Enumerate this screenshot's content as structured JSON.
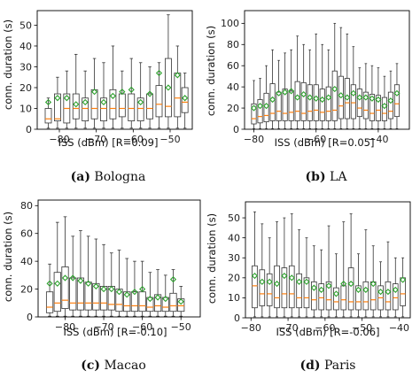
{
  "chart_data": [
    {
      "type": "box",
      "caption_tag": "(a)",
      "caption_text": "Bologna",
      "xlabel": "ISS (dBm) [R=0.09]",
      "ylabel": "conn. duration (s)",
      "xlim": [
        -86,
        -44
      ],
      "ylim": [
        0,
        57
      ],
      "xticks": [
        -80,
        -70,
        -60,
        -50
      ],
      "yticks": [
        0,
        10,
        20,
        30,
        40,
        50
      ],
      "boxes": [
        {
          "x": -83,
          "low": 0.5,
          "q1": 3,
          "median": 5,
          "q3": 10,
          "high": 15,
          "mean": 13
        },
        {
          "x": -80.5,
          "low": 0.5,
          "q1": 4,
          "median": 5,
          "q3": 17,
          "high": 25,
          "mean": 15
        },
        {
          "x": -78,
          "low": 0.5,
          "q1": 3,
          "median": 10,
          "q3": 17,
          "high": 28,
          "mean": 15
        },
        {
          "x": -75.5,
          "low": 0.5,
          "q1": 5,
          "median": 10,
          "q3": 17,
          "high": 36,
          "mean": 12
        },
        {
          "x": -73,
          "low": 0.5,
          "q1": 4,
          "median": 10,
          "q3": 15,
          "high": 28,
          "mean": 13
        },
        {
          "x": -70.5,
          "low": 0.5,
          "q1": 5,
          "median": 10,
          "q3": 19,
          "high": 34,
          "mean": 18
        },
        {
          "x": -68,
          "low": 0.5,
          "q1": 4,
          "median": 10,
          "q3": 15,
          "high": 32,
          "mean": 13
        },
        {
          "x": -65.5,
          "low": 0.5,
          "q1": 5,
          "median": 10,
          "q3": 19,
          "high": 40,
          "mean": 16
        },
        {
          "x": -63,
          "low": 0.5,
          "q1": 6,
          "median": 10,
          "q3": 17,
          "high": 28,
          "mean": 18
        },
        {
          "x": -60.5,
          "low": 0.5,
          "q1": 4,
          "median": 10,
          "q3": 17,
          "high": 34,
          "mean": 19
        },
        {
          "x": -58,
          "low": 0.5,
          "q1": 4,
          "median": 10,
          "q3": 15,
          "high": 32,
          "mean": 13
        },
        {
          "x": -55.5,
          "low": 0.5,
          "q1": 5,
          "median": 10,
          "q3": 17,
          "high": 30,
          "mean": 17
        },
        {
          "x": -53,
          "low": 0.5,
          "q1": 6,
          "median": 12,
          "q3": 21,
          "high": 32,
          "mean": 27
        },
        {
          "x": -50.5,
          "low": 0.5,
          "q1": 6,
          "median": 11,
          "q3": 34,
          "high": 55,
          "mean": 20
        },
        {
          "x": -48,
          "low": 0.5,
          "q1": 6,
          "median": 15,
          "q3": 27,
          "high": 40,
          "mean": 26
        },
        {
          "x": -46,
          "low": 0.5,
          "q1": 8,
          "median": 13,
          "q3": 20,
          "high": 27,
          "mean": 15
        }
      ]
    },
    {
      "type": "box",
      "caption_tag": "(b)",
      "caption_text": "LA",
      "xlabel": "ISS (dBm) [R=0.05]",
      "ylabel": "conn. duration (s)",
      "xlim": [
        -83,
        -30
      ],
      "ylim": [
        0,
        112
      ],
      "xticks": [
        -80,
        -60,
        -40
      ],
      "yticks": [
        0,
        20,
        40,
        60,
        80,
        100
      ],
      "boxes": [
        {
          "x": -80,
          "low": 0.5,
          "q1": 5,
          "median": 10,
          "q3": 24,
          "high": 46,
          "mean": 20
        },
        {
          "x": -78,
          "low": 0.5,
          "q1": 6,
          "median": 12,
          "q3": 28,
          "high": 48,
          "mean": 22
        },
        {
          "x": -76,
          "low": 0.5,
          "q1": 7,
          "median": 13,
          "q3": 34,
          "high": 60,
          "mean": 22
        },
        {
          "x": -74,
          "low": 0.5,
          "q1": 8,
          "median": 15,
          "q3": 43,
          "high": 75,
          "mean": 28
        },
        {
          "x": -72,
          "low": 0.5,
          "q1": 8,
          "median": 17,
          "q3": 35,
          "high": 65,
          "mean": 34
        },
        {
          "x": -70,
          "low": 0.5,
          "q1": 8,
          "median": 15,
          "q3": 38,
          "high": 72,
          "mean": 35
        },
        {
          "x": -68,
          "low": 0.5,
          "q1": 8,
          "median": 16,
          "q3": 36,
          "high": 75,
          "mean": 36
        },
        {
          "x": -66,
          "low": 0.5,
          "q1": 8,
          "median": 17,
          "q3": 45,
          "high": 88,
          "mean": 30
        },
        {
          "x": -64,
          "low": 0.5,
          "q1": 8,
          "median": 15,
          "q3": 44,
          "high": 80,
          "mean": 33
        },
        {
          "x": -62,
          "low": 0.5,
          "q1": 8,
          "median": 17,
          "q3": 42,
          "high": 75,
          "mean": 30
        },
        {
          "x": -60,
          "low": 0.5,
          "q1": 8,
          "median": 18,
          "q3": 42,
          "high": 90,
          "mean": 29
        },
        {
          "x": -58,
          "low": 0.5,
          "q1": 8,
          "median": 16,
          "q3": 38,
          "high": 80,
          "mean": 28
        },
        {
          "x": -56,
          "low": 0.5,
          "q1": 8,
          "median": 17,
          "q3": 40,
          "high": 75,
          "mean": 30
        },
        {
          "x": -54,
          "low": 0.5,
          "q1": 8,
          "median": 18,
          "q3": 55,
          "high": 100,
          "mean": 38
        },
        {
          "x": -52,
          "low": 0.5,
          "q1": 10,
          "median": 22,
          "q3": 50,
          "high": 96,
          "mean": 32
        },
        {
          "x": -50,
          "low": 0.5,
          "q1": 10,
          "median": 25,
          "q3": 48,
          "high": 90,
          "mean": 30
        },
        {
          "x": -48,
          "low": 0.5,
          "q1": 10,
          "median": 25,
          "q3": 42,
          "high": 78,
          "mean": 34
        },
        {
          "x": -46,
          "low": 0.5,
          "q1": 12,
          "median": 20,
          "q3": 38,
          "high": 58,
          "mean": 30
        },
        {
          "x": -44,
          "low": 0.5,
          "q1": 10,
          "median": 18,
          "q3": 35,
          "high": 62,
          "mean": 30
        },
        {
          "x": -42,
          "low": 0.5,
          "q1": 8,
          "median": 15,
          "q3": 33,
          "high": 60,
          "mean": 29
        },
        {
          "x": -40,
          "low": 0.5,
          "q1": 8,
          "median": 18,
          "q3": 32,
          "high": 58,
          "mean": 28
        },
        {
          "x": -38,
          "low": 0.5,
          "q1": 8,
          "median": 15,
          "q3": 30,
          "high": 50,
          "mean": 22
        },
        {
          "x": -36,
          "low": 0.5,
          "q1": 10,
          "median": 17,
          "q3": 35,
          "high": 55,
          "mean": 27
        },
        {
          "x": -34,
          "low": 0.5,
          "q1": 12,
          "median": 24,
          "q3": 42,
          "high": 62,
          "mean": 34
        }
      ]
    },
    {
      "type": "box",
      "caption_tag": "(c)",
      "caption_text": "Macao",
      "xlabel": "ISS (dBm) [R=-0.10]",
      "ylabel": "conn. duration (s)",
      "xlim": [
        -87,
        -45
      ],
      "ylim": [
        0,
        84
      ],
      "xticks": [
        -80,
        -70,
        -60,
        -50
      ],
      "yticks": [
        0,
        20,
        40,
        60,
        80
      ],
      "boxes": [
        {
          "x": -84,
          "low": 0.5,
          "q1": 3,
          "median": 7,
          "q3": 18,
          "high": 38,
          "mean": 24
        },
        {
          "x": -82,
          "low": 0.5,
          "q1": 4,
          "median": 10,
          "q3": 32,
          "high": 68,
          "mean": 24
        },
        {
          "x": -80,
          "low": 0.5,
          "q1": 6,
          "median": 12,
          "q3": 36,
          "high": 72,
          "mean": 28
        },
        {
          "x": -78,
          "low": 0.5,
          "q1": 5,
          "median": 10,
          "q3": 28,
          "high": 58,
          "mean": 28
        },
        {
          "x": -76,
          "low": 0.5,
          "q1": 5,
          "median": 10,
          "q3": 28,
          "high": 62,
          "mean": 26
        },
        {
          "x": -74,
          "low": 0.5,
          "q1": 5,
          "median": 10,
          "q3": 25,
          "high": 58,
          "mean": 24
        },
        {
          "x": -72,
          "low": 0.5,
          "q1": 5,
          "median": 10,
          "q3": 24,
          "high": 56,
          "mean": 22
        },
        {
          "x": -70,
          "low": 0.5,
          "q1": 5,
          "median": 10,
          "q3": 22,
          "high": 52,
          "mean": 20
        },
        {
          "x": -68,
          "low": 0.5,
          "q1": 5,
          "median": 9,
          "q3": 22,
          "high": 46,
          "mean": 20
        },
        {
          "x": -66,
          "low": 0.5,
          "q1": 4,
          "median": 9,
          "q3": 20,
          "high": 48,
          "mean": 18
        },
        {
          "x": -64,
          "low": 0.5,
          "q1": 4,
          "median": 8,
          "q3": 18,
          "high": 42,
          "mean": 16
        },
        {
          "x": -62,
          "low": 0.5,
          "q1": 4,
          "median": 8,
          "q3": 18,
          "high": 40,
          "mean": 18
        },
        {
          "x": -60,
          "low": 0.5,
          "q1": 4,
          "median": 8,
          "q3": 18,
          "high": 40,
          "mean": 20
        },
        {
          "x": -58,
          "low": 0.5,
          "q1": 4,
          "median": 7,
          "q3": 14,
          "high": 32,
          "mean": 13
        },
        {
          "x": -56,
          "low": 0.5,
          "q1": 4,
          "median": 8,
          "q3": 16,
          "high": 34,
          "mean": 14
        },
        {
          "x": -54,
          "low": 0.5,
          "q1": 4,
          "median": 7,
          "q3": 14,
          "high": 30,
          "mean": 13
        },
        {
          "x": -52,
          "low": 0.5,
          "q1": 4,
          "median": 8,
          "q3": 17,
          "high": 34,
          "mean": 27
        },
        {
          "x": -50,
          "low": 0.5,
          "q1": 4,
          "median": 8,
          "q3": 13,
          "high": 22,
          "mean": 11
        }
      ]
    },
    {
      "type": "box",
      "caption_tag": "(d)",
      "caption_text": "Paris",
      "xlabel": "ISS (dBm) [R=-0.06]",
      "ylabel": "conn. duration (s)",
      "xlim": [
        -81.5,
        -37
      ],
      "ylim": [
        0,
        58
      ],
      "xticks": [
        -80,
        -70,
        -60,
        -50,
        -40
      ],
      "yticks": [
        0,
        10,
        20,
        30,
        40,
        50
      ],
      "boxes": [
        {
          "x": -79,
          "low": 0.5,
          "q1": 5,
          "median": 16,
          "q3": 26,
          "high": 53,
          "mean": 21
        },
        {
          "x": -77,
          "low": 0.5,
          "q1": 6,
          "median": 12,
          "q3": 24,
          "high": 47,
          "mean": 18
        },
        {
          "x": -75,
          "low": 0.5,
          "q1": 6,
          "median": 12,
          "q3": 22,
          "high": 40,
          "mean": 18
        },
        {
          "x": -73,
          "low": 0.5,
          "q1": 5,
          "median": 10,
          "q3": 26,
          "high": 48,
          "mean": 17
        },
        {
          "x": -71,
          "low": 0.5,
          "q1": 5,
          "median": 12,
          "q3": 25,
          "high": 50,
          "mean": 21
        },
        {
          "x": -69,
          "low": 0.5,
          "q1": 5,
          "median": 12,
          "q3": 26,
          "high": 52,
          "mean": 20
        },
        {
          "x": -67,
          "low": 0.5,
          "q1": 5,
          "median": 10,
          "q3": 22,
          "high": 44,
          "mean": 18
        },
        {
          "x": -65,
          "low": 0.5,
          "q1": 5,
          "median": 10,
          "q3": 20,
          "high": 40,
          "mean": 18
        },
        {
          "x": -63,
          "low": 0.5,
          "q1": 4,
          "median": 9,
          "q3": 18,
          "high": 36,
          "mean": 15
        },
        {
          "x": -61,
          "low": 0.5,
          "q1": 4,
          "median": 10,
          "q3": 17,
          "high": 34,
          "mean": 14
        },
        {
          "x": -59,
          "low": 0.5,
          "q1": 4,
          "median": 9,
          "q3": 18,
          "high": 46,
          "mean": 16
        },
        {
          "x": -57,
          "low": 0.5,
          "q1": 4,
          "median": 8,
          "q3": 15,
          "high": 32,
          "mean": 12
        },
        {
          "x": -55,
          "low": 0.5,
          "q1": 4,
          "median": 9,
          "q3": 16,
          "high": 48,
          "mean": 17
        },
        {
          "x": -53,
          "low": 0.5,
          "q1": 4,
          "median": 8,
          "q3": 25,
          "high": 52,
          "mean": 17
        },
        {
          "x": -51,
          "low": 0.5,
          "q1": 4,
          "median": 8,
          "q3": 16,
          "high": 32,
          "mean": 14
        },
        {
          "x": -49,
          "low": 0.5,
          "q1": 4,
          "median": 8,
          "q3": 18,
          "high": 44,
          "mean": 14
        },
        {
          "x": -47,
          "low": 0.5,
          "q1": 4,
          "median": 9,
          "q3": 18,
          "high": 36,
          "mean": 17
        },
        {
          "x": -45,
          "low": 0.5,
          "q1": 4,
          "median": 10,
          "q3": 16,
          "high": 28,
          "mean": 13
        },
        {
          "x": -43,
          "low": 0.5,
          "q1": 4,
          "median": 8,
          "q3": 18,
          "high": 38,
          "mean": 13
        },
        {
          "x": -41,
          "low": 0.5,
          "q1": 4,
          "median": 10,
          "q3": 17,
          "high": 30,
          "mean": 14
        },
        {
          "x": -39,
          "low": 0.5,
          "q1": 6,
          "median": 12,
          "q3": 20,
          "high": 30,
          "mean": 19
        }
      ]
    }
  ],
  "colors": {
    "box_edge": "#333333",
    "median": "#ff7f0e",
    "mean_marker": "#2ca02c",
    "axis": "#000000",
    "background": "#ffffff"
  }
}
